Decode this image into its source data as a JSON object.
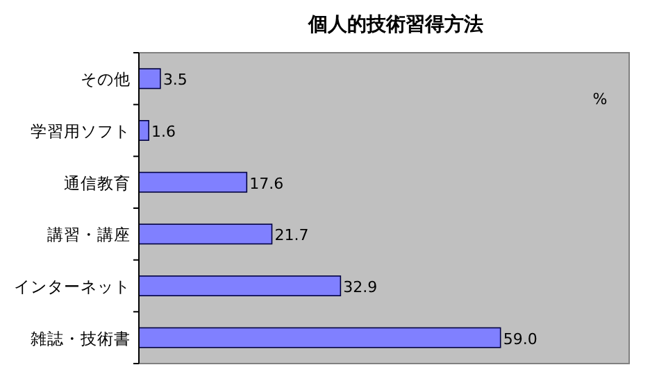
{
  "chart_data": {
    "type": "bar",
    "orientation": "horizontal",
    "title": "個人的技術習得方法",
    "categories": [
      "その他",
      "学習用ソフト",
      "通信教育",
      "講習・講座",
      "インターネット",
      "雑誌・技術書"
    ],
    "values": [
      3.5,
      1.6,
      17.6,
      21.7,
      32.9,
      59.0
    ],
    "value_labels": [
      "3.5",
      "1.6",
      "17.6",
      "21.7",
      "32.9",
      "59.0"
    ],
    "color": "#8080ff",
    "xlim": [
      0,
      80
    ],
    "annotations": [
      "%"
    ]
  }
}
